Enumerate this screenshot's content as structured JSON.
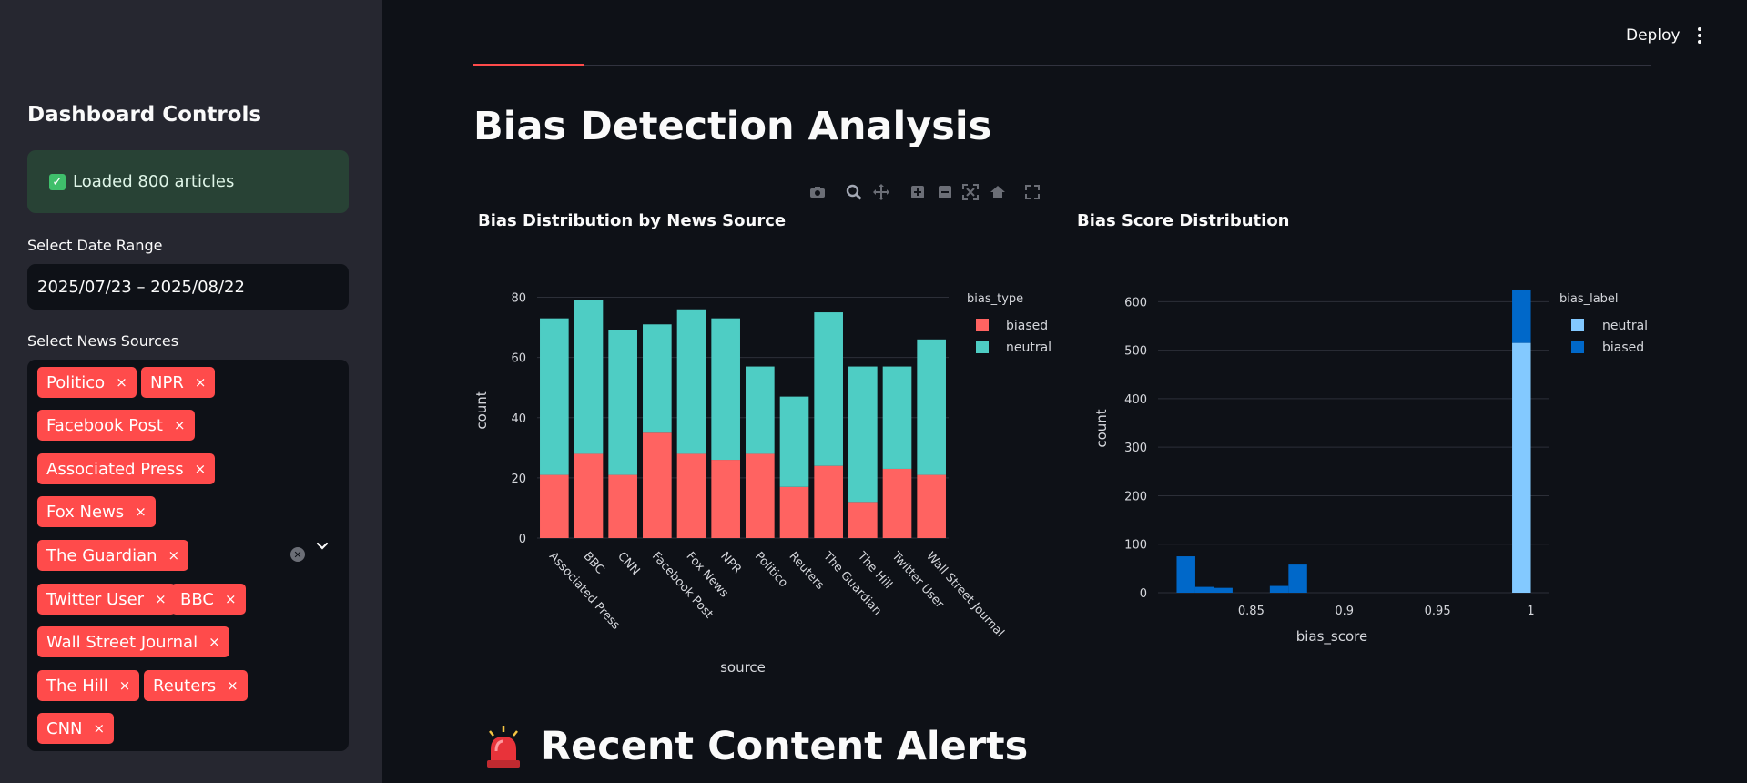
{
  "sidebar": {
    "title": "Dashboard Controls",
    "success_text": "Loaded 800 articles",
    "date_label": "Select Date Range",
    "date_value": "2025/07/23 – 2025/08/22",
    "sources_label": "Select News Sources",
    "chips": [
      "Politico",
      "NPR",
      "Facebook Post",
      "Associated Press",
      "Fox News",
      "The Guardian",
      "Twitter User",
      "BBC",
      "Wall Street Journal",
      "The Hill",
      "Reuters",
      "CNN"
    ],
    "chip_remove_symbol": "×"
  },
  "header": {
    "deploy_label": "Deploy"
  },
  "main": {
    "title": "Bias Detection Analysis",
    "alerts_title": "Recent Content Alerts",
    "alerts_icon": "siren-icon"
  },
  "modebar": {
    "icons": [
      "camera-icon",
      "zoom-icon",
      "pan-icon",
      "zoom-in-icon",
      "zoom-out-icon",
      "autoscale-icon",
      "reset-axes-icon",
      "fullscreen-icon"
    ]
  },
  "chart_data": [
    {
      "type": "bar",
      "stacked": true,
      "title": "Bias Distribution by News Source",
      "xlabel": "source",
      "ylabel": "count",
      "legend_title": "bias_type",
      "legend_position": "top-right",
      "categories": [
        "Associated Press",
        "BBC",
        "CNN",
        "Facebook Post",
        "Fox News",
        "NPR",
        "Politico",
        "Reuters",
        "The Guardian",
        "The Hill",
        "Twitter User",
        "Wall Street Journal"
      ],
      "series": [
        {
          "name": "biased",
          "color": "#ff6361",
          "values": [
            21,
            28,
            21,
            35,
            28,
            26,
            28,
            17,
            24,
            12,
            23,
            21
          ]
        },
        {
          "name": "neutral",
          "color": "#4ecdc4",
          "values": [
            52,
            51,
            48,
            36,
            48,
            47,
            29,
            30,
            51,
            45,
            34,
            45
          ]
        }
      ],
      "ylim": [
        0,
        85
      ],
      "yticks": [
        0,
        20,
        40,
        60,
        80
      ],
      "grid": true
    },
    {
      "type": "histogram",
      "stacked": true,
      "title": "Bias Score Distribution",
      "xlabel": "bias_score",
      "ylabel": "count",
      "legend_title": "bias_label",
      "legend_position": "top-right",
      "bin_width": 0.01,
      "bins": [
        {
          "x0": 0.81,
          "neutral": 0,
          "biased": 75
        },
        {
          "x0": 0.82,
          "neutral": 0,
          "biased": 12
        },
        {
          "x0": 0.83,
          "neutral": 0,
          "biased": 10
        },
        {
          "x0": 0.86,
          "neutral": 0,
          "biased": 14
        },
        {
          "x0": 0.87,
          "neutral": 0,
          "biased": 58
        },
        {
          "x0": 0.99,
          "neutral": 515,
          "biased": 110
        }
      ],
      "series": [
        {
          "name": "neutral",
          "color": "#83c9ff"
        },
        {
          "name": "biased",
          "color": "#0068c9"
        }
      ],
      "xlim": [
        0.8,
        1.0
      ],
      "xticks": [
        0.85,
        0.9,
        0.95,
        1
      ],
      "xtick_labels": [
        "0.85",
        "0.9",
        "0.95",
        "1"
      ],
      "ylim": [
        0,
        640
      ],
      "yticks": [
        0,
        100,
        200,
        300,
        400,
        500,
        600
      ],
      "grid": true
    }
  ]
}
